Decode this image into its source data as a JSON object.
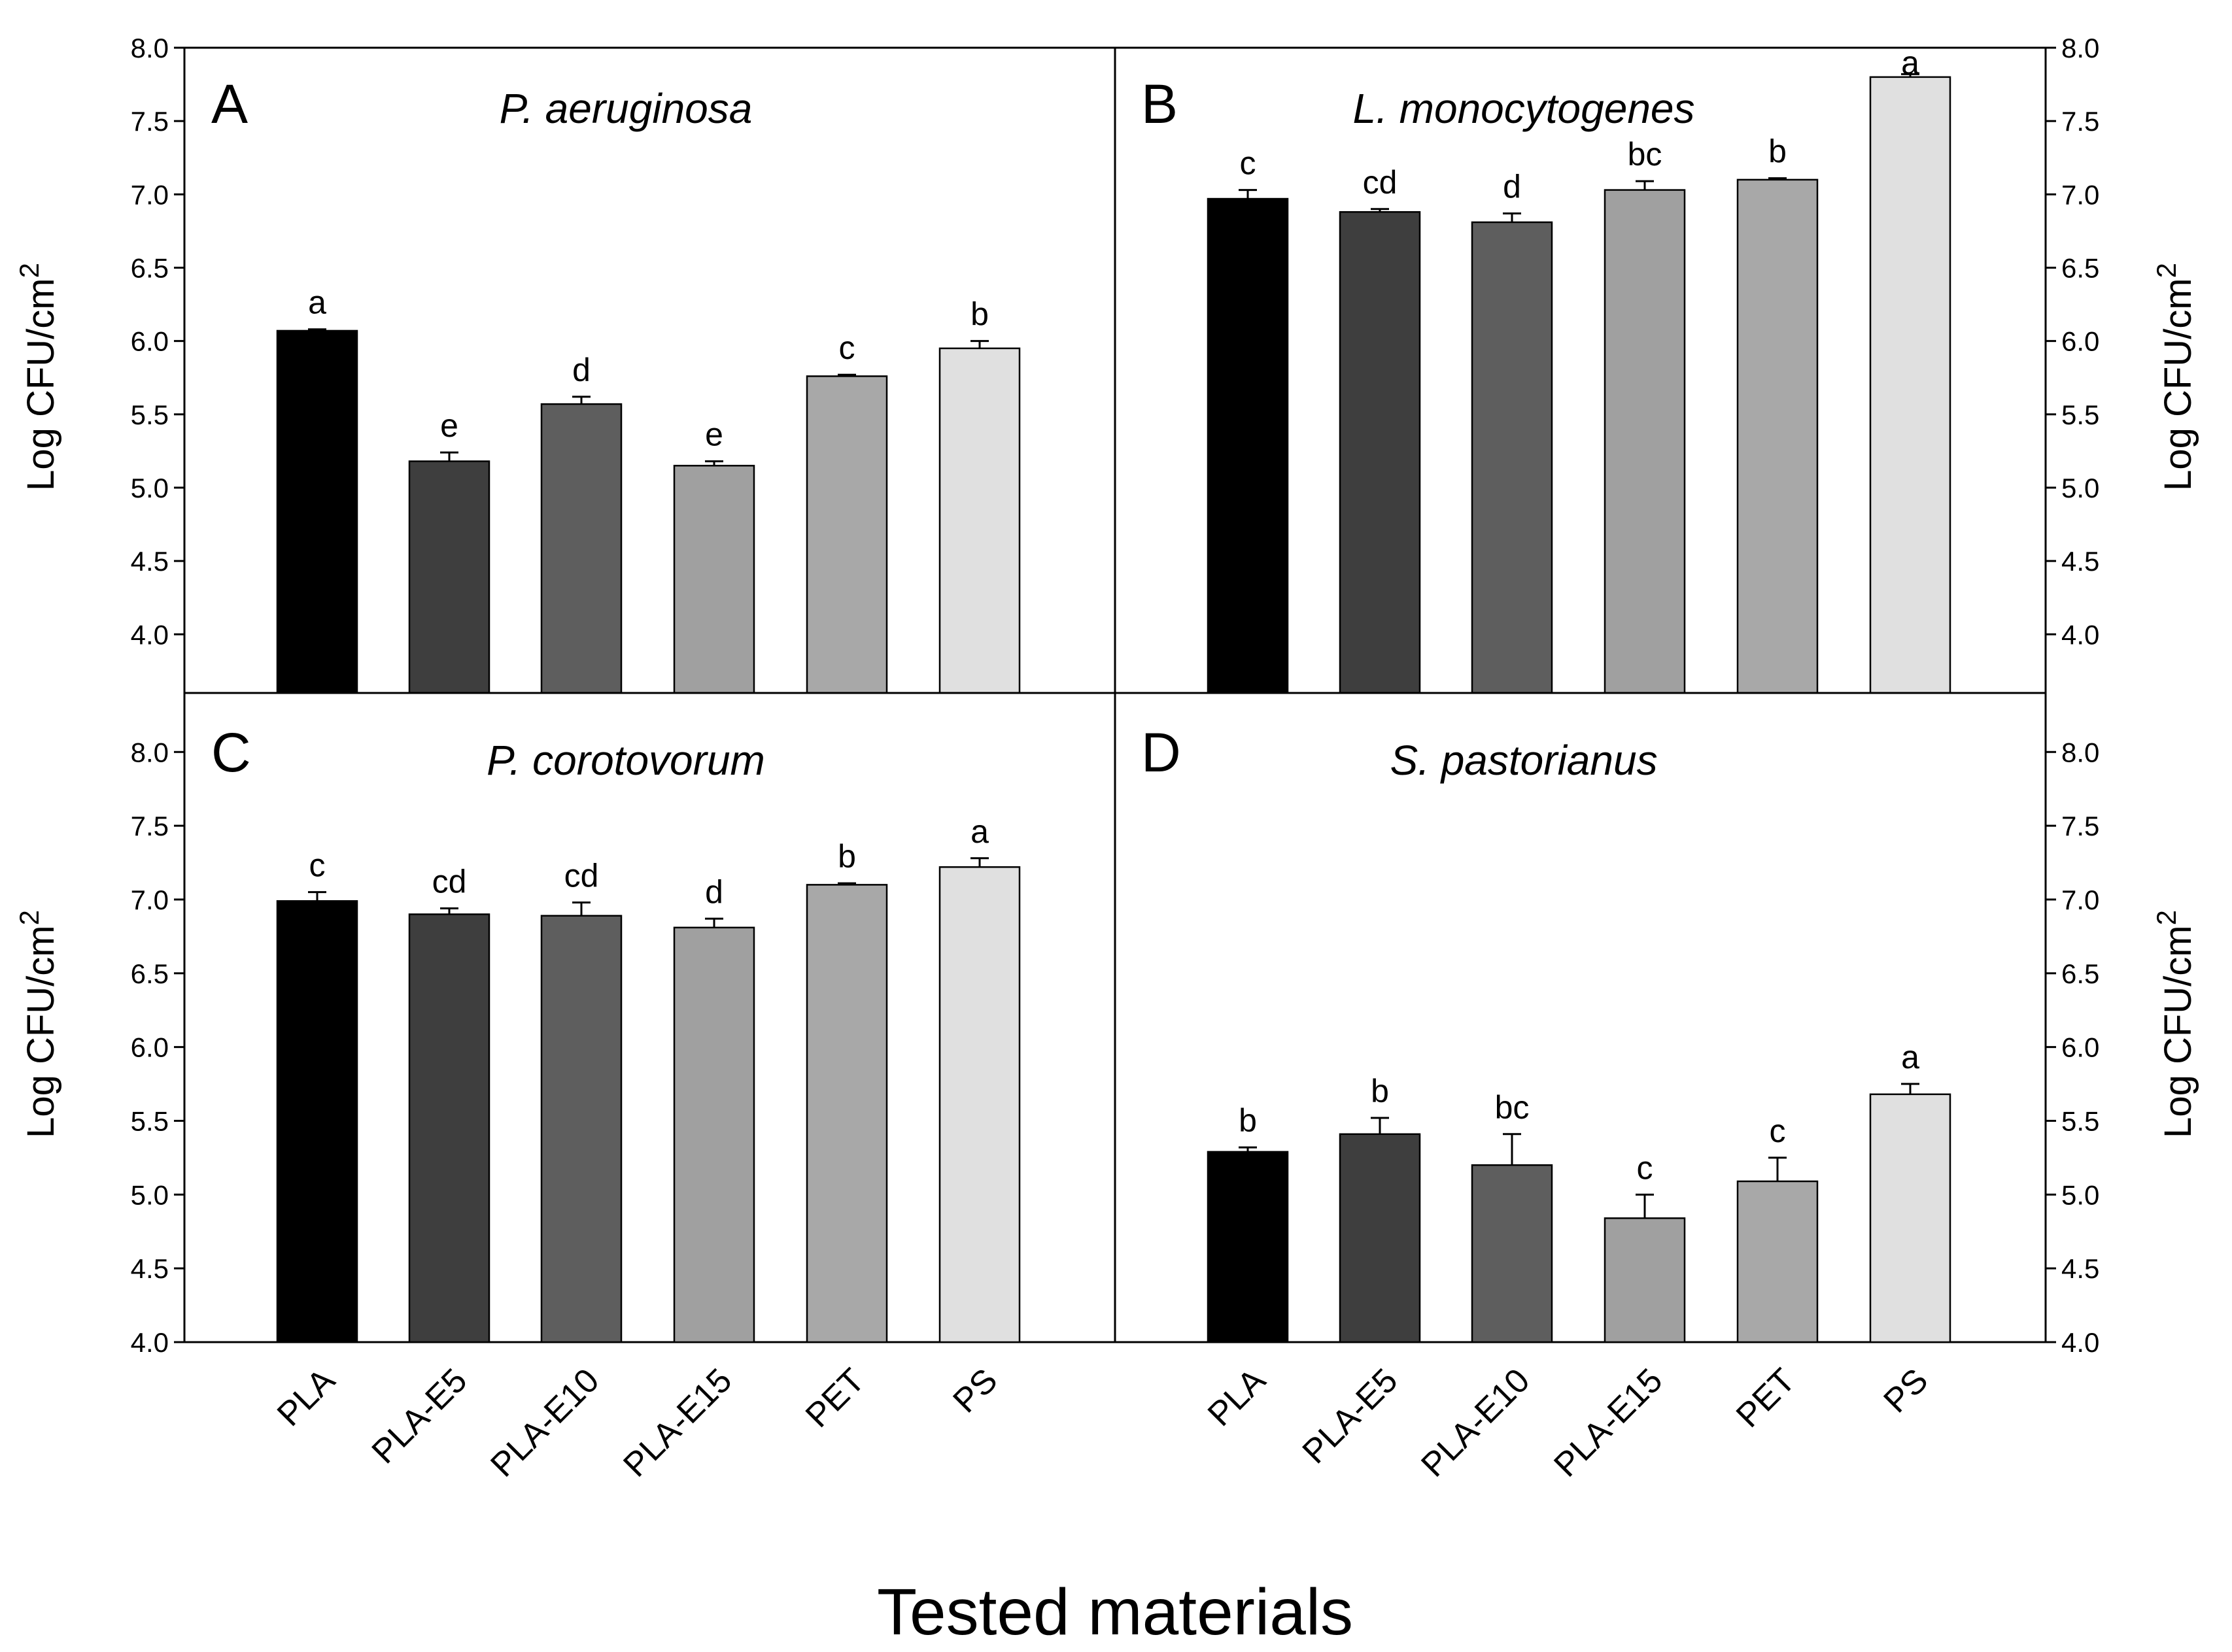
{
  "figure": {
    "x_axis_title": "Tested materials"
  },
  "chart_data": [
    {
      "type": "bar",
      "panel": "A",
      "title": "P. aeruginosa",
      "ylabel": "Log CFU/cm",
      "ylabel_superscript": "2",
      "ylim": [
        3.6,
        8.0
      ],
      "yticks": [
        "4.0",
        "4.5",
        "5.0",
        "5.5",
        "6.0",
        "6.5",
        "7.0",
        "7.5",
        "8.0"
      ],
      "categories": [
        "PLA",
        "PLA-E5",
        "PLA-E10",
        "PLA-E15",
        "PET",
        "PS"
      ],
      "values": [
        6.07,
        5.18,
        5.57,
        5.15,
        5.76,
        5.95
      ],
      "errors": [
        0.01,
        0.06,
        0.05,
        0.03,
        0.01,
        0.05
      ],
      "significance": [
        "a",
        "e",
        "d",
        "e",
        "c",
        "b"
      ],
      "colors": [
        "#000000",
        "#3e3e3e",
        "#5e5e5e",
        "#a0a0a0",
        "#a8a8a8",
        "#e0e0e0"
      ]
    },
    {
      "type": "bar",
      "panel": "B",
      "title": "L. monocytogenes",
      "ylabel": "Log CFU/cm",
      "ylabel_superscript": "2",
      "ylim": [
        3.6,
        8.0
      ],
      "yticks": [
        "4.0",
        "4.5",
        "5.0",
        "5.5",
        "6.0",
        "6.5",
        "7.0",
        "7.5",
        "8.0"
      ],
      "categories": [
        "PLA",
        "PLA-E5",
        "PLA-E10",
        "PLA-E15",
        "PET",
        "PS"
      ],
      "values": [
        6.97,
        6.88,
        6.81,
        7.03,
        7.1,
        7.8
      ],
      "errors": [
        0.06,
        0.02,
        0.06,
        0.06,
        0.01,
        0.02
      ],
      "significance": [
        "c",
        "cd",
        "d",
        "bc",
        "b",
        "a"
      ],
      "colors": [
        "#000000",
        "#3e3e3e",
        "#5e5e5e",
        "#a0a0a0",
        "#a8a8a8",
        "#e0e0e0"
      ]
    },
    {
      "type": "bar",
      "panel": "C",
      "title": "P. corotovorum",
      "ylabel": "Log CFU/cm",
      "ylabel_superscript": "2",
      "ylim": [
        4.0,
        8.4
      ],
      "yticks": [
        "4.0",
        "4.5",
        "5.0",
        "5.5",
        "6.0",
        "6.5",
        "7.0",
        "7.5",
        "8.0"
      ],
      "categories": [
        "PLA",
        "PLA-E5",
        "PLA-E10",
        "PLA-E15",
        "PET",
        "PS"
      ],
      "values": [
        6.99,
        6.9,
        6.89,
        6.81,
        7.1,
        7.22
      ],
      "errors": [
        0.06,
        0.04,
        0.09,
        0.06,
        0.01,
        0.06
      ],
      "significance": [
        "c",
        "cd",
        "cd",
        "d",
        "b",
        "a"
      ],
      "colors": [
        "#000000",
        "#3e3e3e",
        "#5e5e5e",
        "#a0a0a0",
        "#a8a8a8",
        "#e0e0e0"
      ]
    },
    {
      "type": "bar",
      "panel": "D",
      "title": "S. pastorianus",
      "ylabel": "Log CFU/cm",
      "ylabel_superscript": "2",
      "ylim": [
        4.0,
        8.4
      ],
      "yticks": [
        "4.0",
        "4.5",
        "5.0",
        "5.5",
        "6.0",
        "6.5",
        "7.0",
        "7.5",
        "8.0"
      ],
      "categories": [
        "PLA",
        "PLA-E5",
        "PLA-E10",
        "PLA-E15",
        "PET",
        "PS"
      ],
      "values": [
        5.29,
        5.41,
        5.2,
        4.84,
        5.09,
        5.68
      ],
      "errors": [
        0.03,
        0.11,
        0.21,
        0.16,
        0.16,
        0.07
      ],
      "significance": [
        "b",
        "b",
        "bc",
        "c",
        "c",
        "a"
      ],
      "colors": [
        "#000000",
        "#3e3e3e",
        "#5e5e5e",
        "#a0a0a0",
        "#a8a8a8",
        "#e0e0e0"
      ]
    }
  ]
}
